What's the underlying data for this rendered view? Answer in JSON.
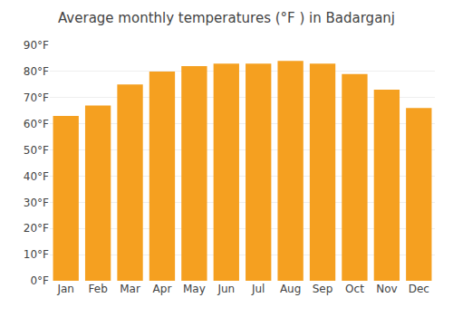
{
  "chart_data": {
    "type": "bar",
    "title": "Average monthly temperatures (°F ) in Badarganj",
    "categories": [
      "Jan",
      "Feb",
      "Mar",
      "Apr",
      "May",
      "Jun",
      "Jul",
      "Aug",
      "Sep",
      "Oct",
      "Nov",
      "Dec"
    ],
    "values": [
      63,
      67,
      75,
      80,
      82,
      83,
      83,
      84,
      83,
      79,
      73,
      66
    ],
    "color": "#F5A020",
    "ylim": [
      0,
      90
    ],
    "yticks": [
      {
        "value": 0,
        "label": "0°F"
      },
      {
        "value": 10,
        "label": "10°F"
      },
      {
        "value": 20,
        "label": "20°F"
      },
      {
        "value": 30,
        "label": "30°F"
      },
      {
        "value": 40,
        "label": "40°F"
      },
      {
        "value": 50,
        "label": "50°F"
      },
      {
        "value": 60,
        "label": "60°F"
      },
      {
        "value": 70,
        "label": "70°F"
      },
      {
        "value": 80,
        "label": "80°F"
      },
      {
        "value": 90,
        "label": "90°F"
      }
    ],
    "grid": true
  }
}
